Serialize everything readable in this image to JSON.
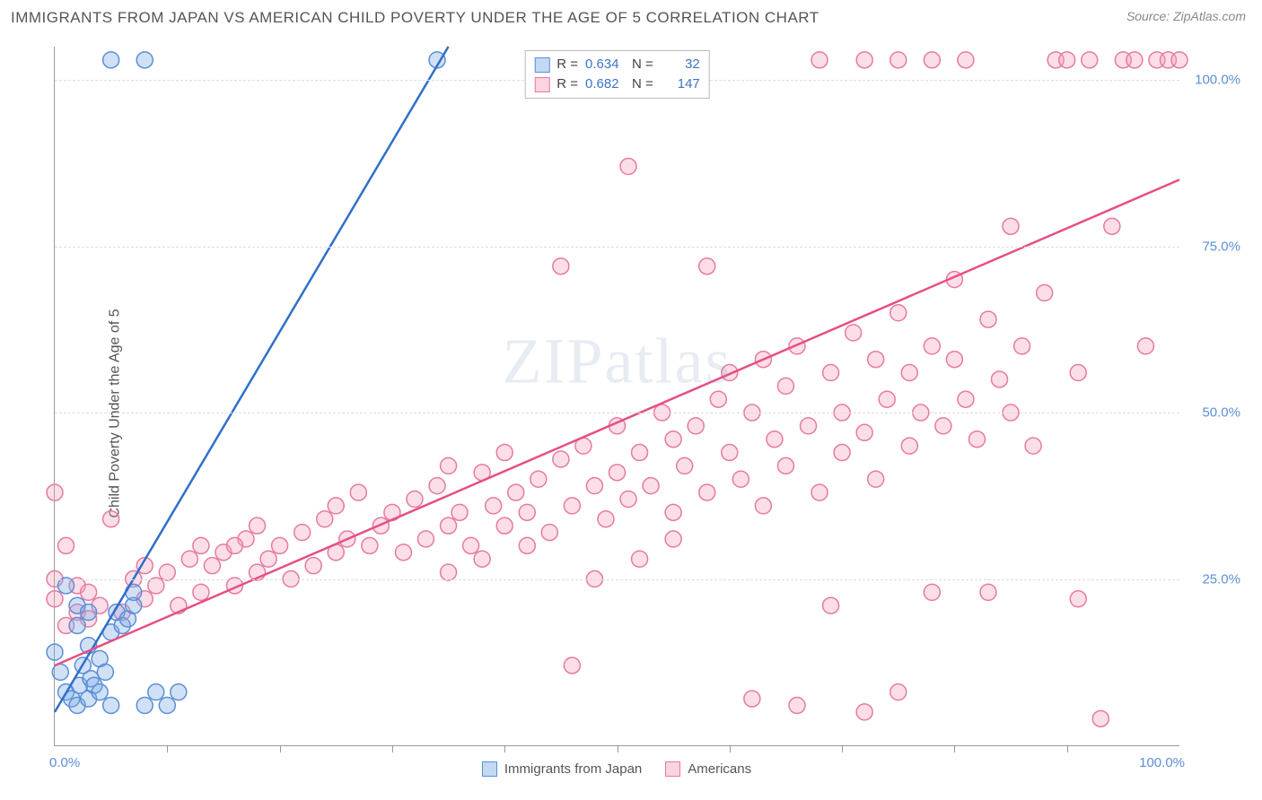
{
  "title": "IMMIGRANTS FROM JAPAN VS AMERICAN CHILD POVERTY UNDER THE AGE OF 5 CORRELATION CHART",
  "source_label": "Source:",
  "source_value": "ZipAtlas.com",
  "watermark": "ZIPatlas",
  "chart": {
    "type": "scatter",
    "xlabel": "",
    "ylabel": "Child Poverty Under the Age of 5",
    "xlim": [
      0,
      100
    ],
    "ylim": [
      0,
      105
    ],
    "xtick_labels": [
      {
        "pos": 0,
        "label": "0.0%"
      },
      {
        "pos": 100,
        "label": "100.0%"
      }
    ],
    "xtick_minor": [
      10,
      20,
      30,
      40,
      50,
      60,
      70,
      80,
      90
    ],
    "ytick_labels": [
      {
        "pos": 25,
        "label": "25.0%"
      },
      {
        "pos": 50,
        "label": "50.0%"
      },
      {
        "pos": 75,
        "label": "75.0%"
      },
      {
        "pos": 100,
        "label": "100.0%"
      }
    ],
    "grid_color": "#dddddd",
    "axis_color": "#999999",
    "background_color": "#ffffff",
    "marker_radius": 9,
    "marker_stroke_width": 1.5,
    "line_width": 2.5,
    "series": [
      {
        "name": "Immigrants from Japan",
        "fill": "rgba(120,170,230,0.35)",
        "stroke": "#5b8fd6",
        "line_color": "#2f6fc9",
        "R": "0.634",
        "N": "32",
        "trend": {
          "x1": 0,
          "y1": 5,
          "x2": 35,
          "y2": 105
        },
        "points": [
          [
            0,
            14
          ],
          [
            0.5,
            11
          ],
          [
            1,
            8
          ],
          [
            1.5,
            7
          ],
          [
            2,
            6
          ],
          [
            2.2,
            9
          ],
          [
            2.5,
            12
          ],
          [
            3,
            7
          ],
          [
            3.2,
            10
          ],
          [
            3.5,
            9
          ],
          [
            4,
            8
          ],
          [
            4,
            13
          ],
          [
            4.5,
            11
          ],
          [
            5,
            6
          ],
          [
            5,
            17
          ],
          [
            5.5,
            20
          ],
          [
            6,
            18
          ],
          [
            6.5,
            19
          ],
          [
            7,
            21
          ],
          [
            7,
            23
          ],
          [
            8,
            6
          ],
          [
            9,
            8
          ],
          [
            10,
            6
          ],
          [
            11,
            8
          ],
          [
            2,
            21
          ],
          [
            3,
            20
          ],
          [
            5,
            103
          ],
          [
            8,
            103
          ],
          [
            34,
            103
          ],
          [
            1,
            24
          ],
          [
            2,
            18
          ],
          [
            3,
            15
          ]
        ]
      },
      {
        "name": "Americans",
        "fill": "rgba(245,160,190,0.35)",
        "stroke": "#e77aa2",
        "line_color": "#e64f86",
        "R": "0.682",
        "N": "147",
        "trend": {
          "x1": 0,
          "y1": 12,
          "x2": 100,
          "y2": 85
        },
        "points": [
          [
            0,
            25
          ],
          [
            0,
            22
          ],
          [
            0,
            38
          ],
          [
            1,
            18
          ],
          [
            1,
            30
          ],
          [
            2,
            20
          ],
          [
            2,
            24
          ],
          [
            3,
            19
          ],
          [
            3,
            23
          ],
          [
            4,
            21
          ],
          [
            5,
            34
          ],
          [
            6,
            20
          ],
          [
            7,
            25
          ],
          [
            8,
            22
          ],
          [
            8,
            27
          ],
          [
            9,
            24
          ],
          [
            10,
            26
          ],
          [
            11,
            21
          ],
          [
            12,
            28
          ],
          [
            13,
            23
          ],
          [
            14,
            27
          ],
          [
            15,
            29
          ],
          [
            16,
            24
          ],
          [
            17,
            31
          ],
          [
            18,
            26
          ],
          [
            18,
            33
          ],
          [
            19,
            28
          ],
          [
            20,
            30
          ],
          [
            21,
            25
          ],
          [
            22,
            32
          ],
          [
            23,
            27
          ],
          [
            24,
            34
          ],
          [
            25,
            29
          ],
          [
            25,
            36
          ],
          [
            26,
            31
          ],
          [
            27,
            38
          ],
          [
            28,
            30
          ],
          [
            29,
            33
          ],
          [
            30,
            35
          ],
          [
            31,
            29
          ],
          [
            32,
            37
          ],
          [
            33,
            31
          ],
          [
            34,
            39
          ],
          [
            35,
            33
          ],
          [
            35,
            42
          ],
          [
            36,
            35
          ],
          [
            37,
            30
          ],
          [
            38,
            41
          ],
          [
            39,
            36
          ],
          [
            40,
            33
          ],
          [
            40,
            44
          ],
          [
            41,
            38
          ],
          [
            42,
            35
          ],
          [
            43,
            40
          ],
          [
            44,
            32
          ],
          [
            45,
            43
          ],
          [
            45,
            72
          ],
          [
            46,
            36
          ],
          [
            46,
            12
          ],
          [
            47,
            45
          ],
          [
            48,
            39
          ],
          [
            49,
            34
          ],
          [
            50,
            41
          ],
          [
            50,
            48
          ],
          [
            51,
            37
          ],
          [
            51,
            87
          ],
          [
            52,
            44
          ],
          [
            53,
            39
          ],
          [
            54,
            50
          ],
          [
            55,
            35
          ],
          [
            55,
            46
          ],
          [
            56,
            42
          ],
          [
            57,
            48
          ],
          [
            57,
            103
          ],
          [
            58,
            38
          ],
          [
            58,
            72
          ],
          [
            59,
            52
          ],
          [
            60,
            44
          ],
          [
            60,
            56
          ],
          [
            61,
            40
          ],
          [
            62,
            50
          ],
          [
            63,
            36
          ],
          [
            63,
            58
          ],
          [
            64,
            46
          ],
          [
            65,
            54
          ],
          [
            65,
            42
          ],
          [
            66,
            60
          ],
          [
            67,
            48
          ],
          [
            68,
            38
          ],
          [
            68,
            103
          ],
          [
            69,
            56
          ],
          [
            69,
            21
          ],
          [
            70,
            50
          ],
          [
            70,
            44
          ],
          [
            71,
            62
          ],
          [
            72,
            47
          ],
          [
            72,
            5
          ],
          [
            73,
            58
          ],
          [
            73,
            40
          ],
          [
            74,
            52
          ],
          [
            75,
            65
          ],
          [
            75,
            8
          ],
          [
            76,
            45
          ],
          [
            76,
            56
          ],
          [
            77,
            50
          ],
          [
            78,
            60
          ],
          [
            78,
            23
          ],
          [
            79,
            48
          ],
          [
            80,
            58
          ],
          [
            80,
            70
          ],
          [
            81,
            52
          ],
          [
            81,
            103
          ],
          [
            82,
            46
          ],
          [
            83,
            64
          ],
          [
            83,
            23
          ],
          [
            84,
            55
          ],
          [
            85,
            50
          ],
          [
            85,
            78
          ],
          [
            86,
            60
          ],
          [
            87,
            45
          ],
          [
            88,
            68
          ],
          [
            89,
            103
          ],
          [
            90,
            103
          ],
          [
            91,
            56
          ],
          [
            91,
            22
          ],
          [
            92,
            103
          ],
          [
            93,
            4
          ],
          [
            94,
            78
          ],
          [
            95,
            103
          ],
          [
            96,
            103
          ],
          [
            97,
            60
          ],
          [
            98,
            103
          ],
          [
            99,
            103
          ],
          [
            100,
            103
          ],
          [
            72,
            103
          ],
          [
            75,
            103
          ],
          [
            78,
            103
          ],
          [
            48,
            25
          ],
          [
            52,
            28
          ],
          [
            55,
            31
          ],
          [
            35,
            26
          ],
          [
            38,
            28
          ],
          [
            42,
            30
          ],
          [
            62,
            7
          ],
          [
            66,
            6
          ],
          [
            13,
            30
          ],
          [
            16,
            30
          ]
        ]
      }
    ],
    "legend_top": [
      {
        "swatch_fill": "rgba(120,170,230,0.45)",
        "swatch_stroke": "#5b8fd6",
        "R": "0.634",
        "N": "32"
      },
      {
        "swatch_fill": "rgba(245,160,190,0.45)",
        "swatch_stroke": "#e77aa2",
        "R": "0.682",
        "N": "147"
      }
    ],
    "legend_bottom": [
      {
        "swatch_fill": "rgba(120,170,230,0.45)",
        "swatch_stroke": "#5b8fd6",
        "label": "Immigrants from Japan"
      },
      {
        "swatch_fill": "rgba(245,160,190,0.45)",
        "swatch_stroke": "#e77aa2",
        "label": "Americans"
      }
    ]
  }
}
